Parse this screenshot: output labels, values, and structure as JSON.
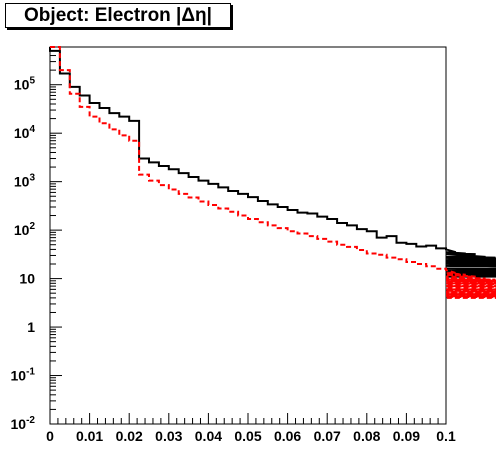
{
  "chart_data": {
    "type": "line",
    "title": "Object: Electron |Δη|",
    "xlabel": "",
    "ylabel": "",
    "xlim": [
      0,
      0.1
    ],
    "ylim": [
      0.01,
      600000
    ],
    "yscale": "log",
    "grid": false,
    "legend": "none",
    "bin_width": 0.0025,
    "x_ticks": [
      "0",
      "0.01",
      "0.02",
      "0.03",
      "0.04",
      "0.05",
      "0.06",
      "0.07",
      "0.08",
      "0.09",
      "0.1"
    ],
    "y_ticks": [
      {
        "base": "10",
        "exp": "-2"
      },
      {
        "base": "10",
        "exp": "-1"
      },
      {
        "base": "1",
        "exp": ""
      },
      {
        "base": "10",
        "exp": ""
      },
      {
        "base": "10",
        "exp": "2"
      },
      {
        "base": "10",
        "exp": "3"
      },
      {
        "base": "10",
        "exp": "4"
      },
      {
        "base": "10",
        "exp": "5"
      }
    ],
    "series": [
      {
        "color": "#000000",
        "style": "solid",
        "values": [
          500000,
          170000,
          90000,
          60000,
          42000,
          33000,
          26000,
          22000,
          18000,
          3000,
          2500,
          2100,
          1800,
          1500,
          1250,
          1050,
          900,
          760,
          640,
          560,
          480,
          400,
          340,
          300,
          260,
          230,
          220,
          190,
          170,
          140,
          125,
          105,
          95,
          70,
          75,
          55,
          52,
          46,
          48,
          42,
          40,
          35,
          33,
          32,
          28,
          27,
          24,
          25,
          26,
          22,
          21,
          18,
          19,
          16,
          15,
          13,
          14,
          12,
          11,
          12
        ]
      },
      {
        "color": "#ff0000",
        "style": "dashed",
        "values": [
          600000,
          200000,
          65000,
          35000,
          22000,
          16000,
          12000,
          9000,
          7000,
          1400,
          1050,
          850,
          690,
          560,
          470,
          390,
          330,
          280,
          240,
          200,
          170,
          145,
          125,
          110,
          95,
          85,
          75,
          66,
          58,
          50,
          45,
          39,
          33,
          31,
          27,
          25,
          22,
          20,
          18,
          16,
          15,
          13,
          12,
          11,
          10,
          9.5,
          9,
          8.5,
          8,
          7.5,
          7,
          6.5,
          6,
          5.6,
          5.3,
          5,
          4.7,
          4.4,
          4.2,
          4
        ]
      }
    ]
  }
}
